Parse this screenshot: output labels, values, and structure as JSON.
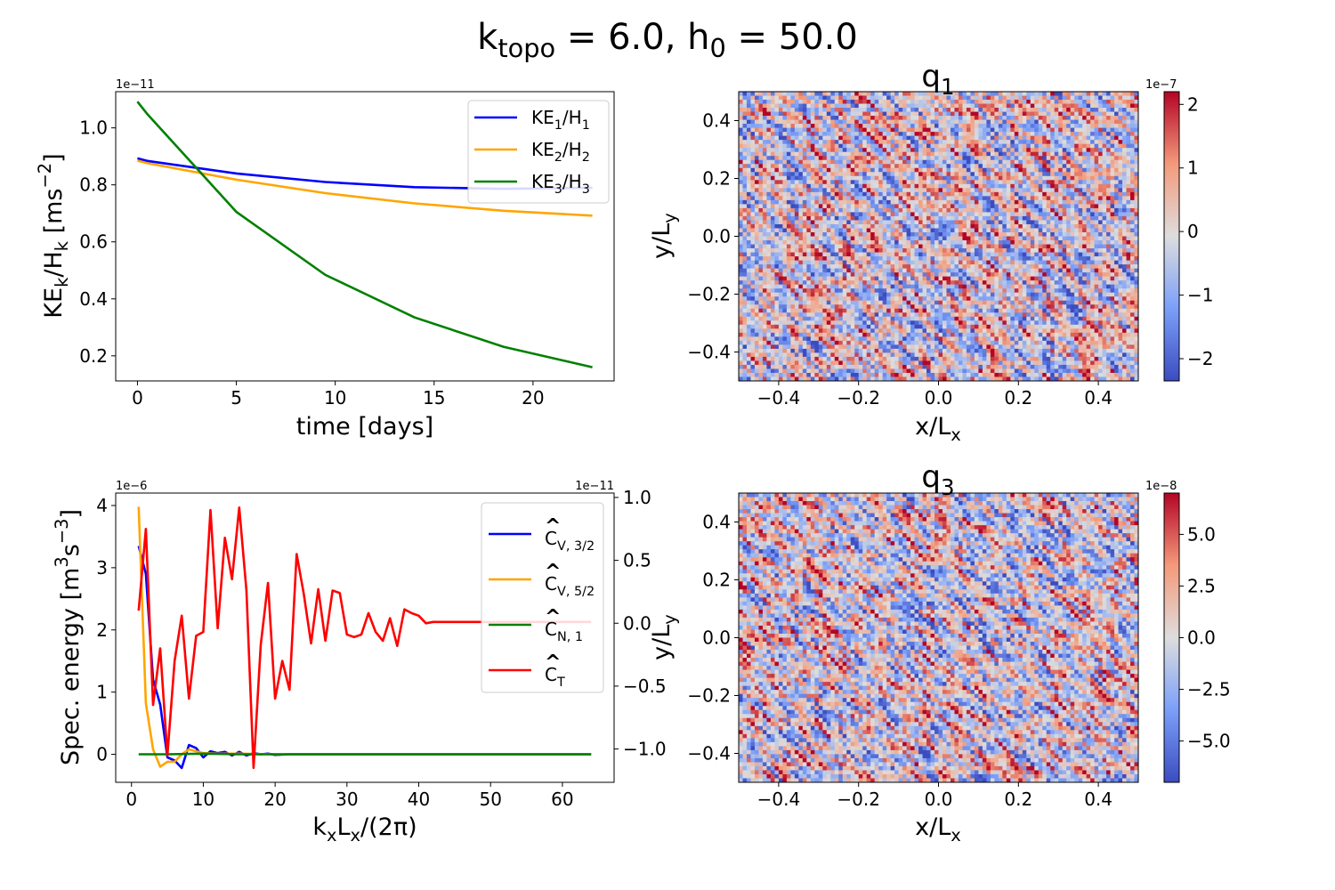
{
  "figure": {
    "title_k": "k",
    "title_k_sub": "topo",
    "title_eq1": " = 6.0, ",
    "title_h": "h",
    "title_h_sub": "0",
    "title_eq2": " = 50.0"
  },
  "chart_data": [
    {
      "id": "ke",
      "type": "line",
      "title": "",
      "xlabel": "time   [days]",
      "ylabel": "KE_k/H_k   [ms^-2]",
      "sci_offset": "1e−11",
      "xlim": [
        -1.1,
        24.1
      ],
      "ylim": [
        0.112,
        1.127
      ],
      "xticks": [
        0,
        5,
        10,
        15,
        20
      ],
      "xtick_labels": [
        "0",
        "5",
        "10",
        "15",
        "20"
      ],
      "yticks": [
        0.2,
        0.4,
        0.6,
        0.8,
        1.0
      ],
      "ytick_labels": [
        "0.2",
        "0.4",
        "0.6",
        "0.8",
        "1.0"
      ],
      "grid": false,
      "legend_placement": "upper-right",
      "series": [
        {
          "name": "KE1/H1",
          "label_main": "KE",
          "label_sub1": "1",
          "label_mid": "/H",
          "label_sub2": "1",
          "color": "#0000ff",
          "x": [
            0,
            0.5,
            5,
            9.5,
            14,
            18.5,
            23
          ],
          "y": [
            0.893,
            0.884,
            0.84,
            0.81,
            0.792,
            0.786,
            0.79
          ]
        },
        {
          "name": "KE2/H2",
          "label_main": "KE",
          "label_sub1": "2",
          "label_mid": "/H",
          "label_sub2": "2",
          "color": "#ffa500",
          "x": [
            0,
            0.5,
            5,
            9.5,
            14,
            18.5,
            23
          ],
          "y": [
            0.885,
            0.876,
            0.818,
            0.771,
            0.735,
            0.709,
            0.692
          ]
        },
        {
          "name": "KE3/H3",
          "label_main": "KE",
          "label_sub1": "3",
          "label_mid": "/H",
          "label_sub2": "3",
          "color": "#008000",
          "x": [
            0,
            0.5,
            5,
            9.5,
            14,
            18.5,
            23
          ],
          "y": [
            1.092,
            1.048,
            0.705,
            0.484,
            0.335,
            0.232,
            0.16
          ]
        }
      ]
    },
    {
      "id": "spec",
      "type": "line",
      "title": "",
      "xlabel": "k_xL_x/(2π)",
      "ylabel": "Spec.  energy   [m^3s^-3]",
      "ylabel_right": "y/L_y",
      "sci_offset_left": "1e−6",
      "sci_offset_right": "1e−11",
      "xlim": [
        -2.2,
        67.2
      ],
      "ylim": [
        -0.45,
        4.2
      ],
      "ylim_right": [
        -1.265,
        1.035
      ],
      "xticks": [
        0,
        10,
        20,
        30,
        40,
        50,
        60
      ],
      "xtick_labels": [
        "0",
        "10",
        "20",
        "30",
        "40",
        "50",
        "60"
      ],
      "yticks": [
        0,
        1,
        2,
        3,
        4
      ],
      "ytick_labels": [
        "0",
        "1",
        "2",
        "3",
        "4"
      ],
      "yticks_right": [
        -1.0,
        -0.5,
        0.0,
        0.5,
        1.0
      ],
      "ytick_labels_right": [
        "−1.0",
        "−0.5",
        "0.0",
        "0.5",
        "1.0"
      ],
      "grid": false,
      "legend_placement": "upper-right",
      "series": [
        {
          "name": "Ĉ_V,3/2",
          "label_main": "C",
          "label_sub": "V, 3/2",
          "color": "#0000ff",
          "axis": "left",
          "x": [
            1,
            2,
            3,
            4,
            5,
            6,
            7,
            8,
            9,
            10,
            11,
            12,
            13,
            14,
            15,
            16,
            17,
            18,
            19,
            20,
            22,
            25,
            30,
            40,
            50,
            64
          ],
          "y": [
            3.35,
            2.9,
            1.2,
            0.8,
            -0.05,
            -0.1,
            -0.22,
            0.15,
            0.1,
            -0.05,
            0.05,
            0.02,
            0.04,
            -0.02,
            0.04,
            -0.02,
            0.02,
            0.0,
            0.01,
            -0.01,
            0.0,
            0.0,
            0.0,
            0.0,
            0.0,
            0.0
          ]
        },
        {
          "name": "Ĉ_V,5/2",
          "label_main": "C",
          "label_sub": "V, 5/2",
          "color": "#ffa500",
          "axis": "left",
          "x": [
            1,
            2,
            3,
            4,
            5,
            6,
            7,
            8,
            9,
            10,
            12,
            15,
            20,
            25,
            30,
            40,
            50,
            64
          ],
          "y": [
            3.98,
            0.82,
            0.08,
            -0.2,
            -0.12,
            -0.12,
            0.0,
            0.08,
            0.05,
            0.02,
            0.01,
            0.01,
            0.0,
            0.0,
            0.0,
            0.0,
            0.0,
            0.0
          ]
        },
        {
          "name": "Ĉ_N,1",
          "label_main": "C",
          "label_sub": "N, 1",
          "color": "#008000",
          "axis": "left",
          "x": [
            1,
            5,
            10,
            15,
            20,
            25,
            30,
            35,
            40,
            45,
            50,
            55,
            60,
            64
          ],
          "y": [
            0.0,
            0.0,
            0.01,
            0.0,
            0.0,
            0.0,
            0.0,
            0.0,
            0.0,
            0.0,
            0.0,
            0.0,
            0.0,
            0.0
          ]
        },
        {
          "name": "Ĉ_T",
          "label_main": "C",
          "label_sub": "T",
          "color": "#ff0000",
          "axis": "right",
          "x": [
            1,
            2,
            3,
            4,
            5,
            6,
            7,
            8,
            9,
            10,
            11,
            12,
            13,
            14,
            15,
            16,
            17,
            18,
            19,
            20,
            21,
            22,
            23,
            24,
            25,
            26,
            27,
            28,
            29,
            30,
            31,
            32,
            33,
            34,
            35,
            36,
            37,
            38,
            39,
            40,
            41,
            42,
            45,
            50,
            55,
            60,
            64
          ],
          "y": [
            0.1,
            0.75,
            -0.65,
            -0.2,
            -1.05,
            -0.3,
            0.06,
            -0.6,
            -0.1,
            -0.07,
            0.9,
            -0.04,
            0.68,
            0.35,
            0.92,
            0.26,
            -1.15,
            -0.17,
            0.32,
            -0.6,
            -0.3,
            -0.53,
            0.55,
            0.23,
            -0.16,
            0.27,
            -0.14,
            0.26,
            0.24,
            -0.09,
            -0.11,
            -0.09,
            0.08,
            -0.07,
            -0.14,
            0.04,
            -0.18,
            0.11,
            0.08,
            0.06,
            0.0,
            0.01,
            0.01,
            0.01,
            0.01,
            0.01,
            0.01
          ]
        }
      ]
    },
    {
      "id": "q1",
      "type": "heatmap",
      "title": "q_1",
      "title_main": "q",
      "title_sub": "1",
      "xlabel": "x/L_x",
      "ylabel": "y/L_y",
      "xlim": [
        -0.5,
        0.5
      ],
      "ylim": [
        -0.5,
        0.5
      ],
      "xticks": [
        -0.4,
        -0.2,
        0.0,
        0.2,
        0.4
      ],
      "xtick_labels": [
        "−0.4",
        "−0.2",
        "0.0",
        "0.2",
        "0.4"
      ],
      "yticks": [
        -0.4,
        -0.2,
        0.0,
        0.2,
        0.4
      ],
      "ytick_labels": [
        "−0.4",
        "−0.2",
        "0.0",
        "0.2",
        "0.4"
      ],
      "colormap": "coolwarm",
      "grid_cells": [
        100,
        72
      ],
      "value_range": [
        -2.35,
        2.2
      ],
      "colorbar_offset": "1e−7",
      "colorbar_ticks": [
        -2,
        -1,
        0,
        1,
        2
      ],
      "colorbar_tick_labels": [
        "−2",
        "−1",
        "0",
        "1",
        "2"
      ],
      "seed": 11
    },
    {
      "id": "q3",
      "type": "heatmap",
      "title": "q_3",
      "title_main": "q",
      "title_sub": "3",
      "xlabel": "x/L_x",
      "ylabel": "",
      "xlim": [
        -0.5,
        0.5
      ],
      "ylim": [
        -0.5,
        0.5
      ],
      "xticks": [
        -0.4,
        -0.2,
        0.0,
        0.2,
        0.4
      ],
      "xtick_labels": [
        "−0.4",
        "−0.2",
        "0.0",
        "0.2",
        "0.4"
      ],
      "yticks": [
        -0.4,
        -0.2,
        0.0,
        0.2,
        0.4
      ],
      "ytick_labels": [
        "−0.4",
        "−0.2",
        "0.0",
        "0.2",
        "0.4"
      ],
      "colormap": "coolwarm",
      "grid_cells": [
        100,
        72
      ],
      "value_range": [
        -7.0,
        7.0
      ],
      "colorbar_offset": "1e−8",
      "colorbar_ticks": [
        -5.0,
        -2.5,
        0.0,
        2.5,
        5.0
      ],
      "colorbar_tick_labels": [
        "−5.0",
        "−2.5",
        "0.0",
        "2.5",
        "5.0"
      ],
      "seed": 37
    }
  ]
}
